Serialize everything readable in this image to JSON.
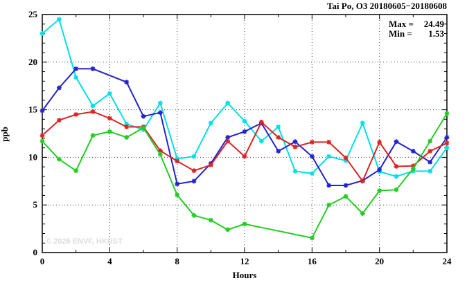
{
  "title": "Tai Po, O3 20180605−20180608",
  "watermark": "© 2026 ENVF, HKUST",
  "annotation": {
    "max_label": "Max =",
    "max_value": "24.49",
    "min_label": "Min =",
    "min_value": "1.53"
  },
  "chart_data": {
    "type": "line",
    "title": "Tai Po, O3 20180605−20180608",
    "xlabel": "Hours",
    "ylabel": "ppb",
    "xlim": [
      0,
      24
    ],
    "ylim": [
      0,
      25
    ],
    "xticks": [
      0,
      4,
      8,
      12,
      16,
      20,
      24
    ],
    "yticks": [
      0,
      5,
      10,
      15,
      20,
      25
    ],
    "x_minor_step": 2,
    "y_minor_step": 1,
    "grid": true,
    "legend_position": "none",
    "stat_max": 24.49,
    "stat_min": 1.53,
    "x": [
      0,
      1,
      2,
      3,
      4,
      5,
      6,
      7,
      8,
      9,
      10,
      11,
      12,
      13,
      14,
      15,
      16,
      17,
      18,
      19,
      20,
      21,
      22,
      23,
      24
    ],
    "series": [
      {
        "name": "cyan-series",
        "color": "#00dfe6",
        "values": [
          23.0,
          24.49,
          18.4,
          15.4,
          16.7,
          13.5,
          12.9,
          15.7,
          9.85,
          10.1,
          13.6,
          15.7,
          13.8,
          11.7,
          13.2,
          8.55,
          8.3,
          10.1,
          9.65,
          13.6,
          8.5,
          8.0,
          8.55,
          8.55,
          11.0
        ]
      },
      {
        "name": "blue-series",
        "color": "#2222cc",
        "values": [
          14.9,
          17.3,
          19.3,
          19.3,
          null,
          17.9,
          14.3,
          14.7,
          7.2,
          7.5,
          9.35,
          12.1,
          12.7,
          13.6,
          10.65,
          11.65,
          10.1,
          7.05,
          7.05,
          7.55,
          8.7,
          11.65,
          10.65,
          9.5,
          12.1
        ]
      },
      {
        "name": "red-series",
        "color": "#dd2222",
        "values": [
          12.3,
          13.9,
          14.5,
          14.8,
          14.1,
          13.2,
          13.2,
          10.7,
          9.6,
          8.6,
          9.2,
          11.7,
          10.1,
          13.7,
          12.1,
          11.1,
          11.6,
          11.6,
          9.95,
          7.5,
          11.6,
          9.05,
          9.1,
          10.65,
          11.5
        ]
      },
      {
        "name": "green-series",
        "color": "#22cc22",
        "values": [
          11.7,
          9.8,
          8.6,
          12.3,
          12.7,
          12.1,
          13.1,
          10.3,
          6.05,
          3.9,
          3.4,
          2.4,
          3.0,
          null,
          null,
          null,
          1.53,
          5.0,
          5.9,
          4.1,
          6.5,
          6.6,
          8.8,
          11.7,
          14.6
        ]
      }
    ]
  }
}
